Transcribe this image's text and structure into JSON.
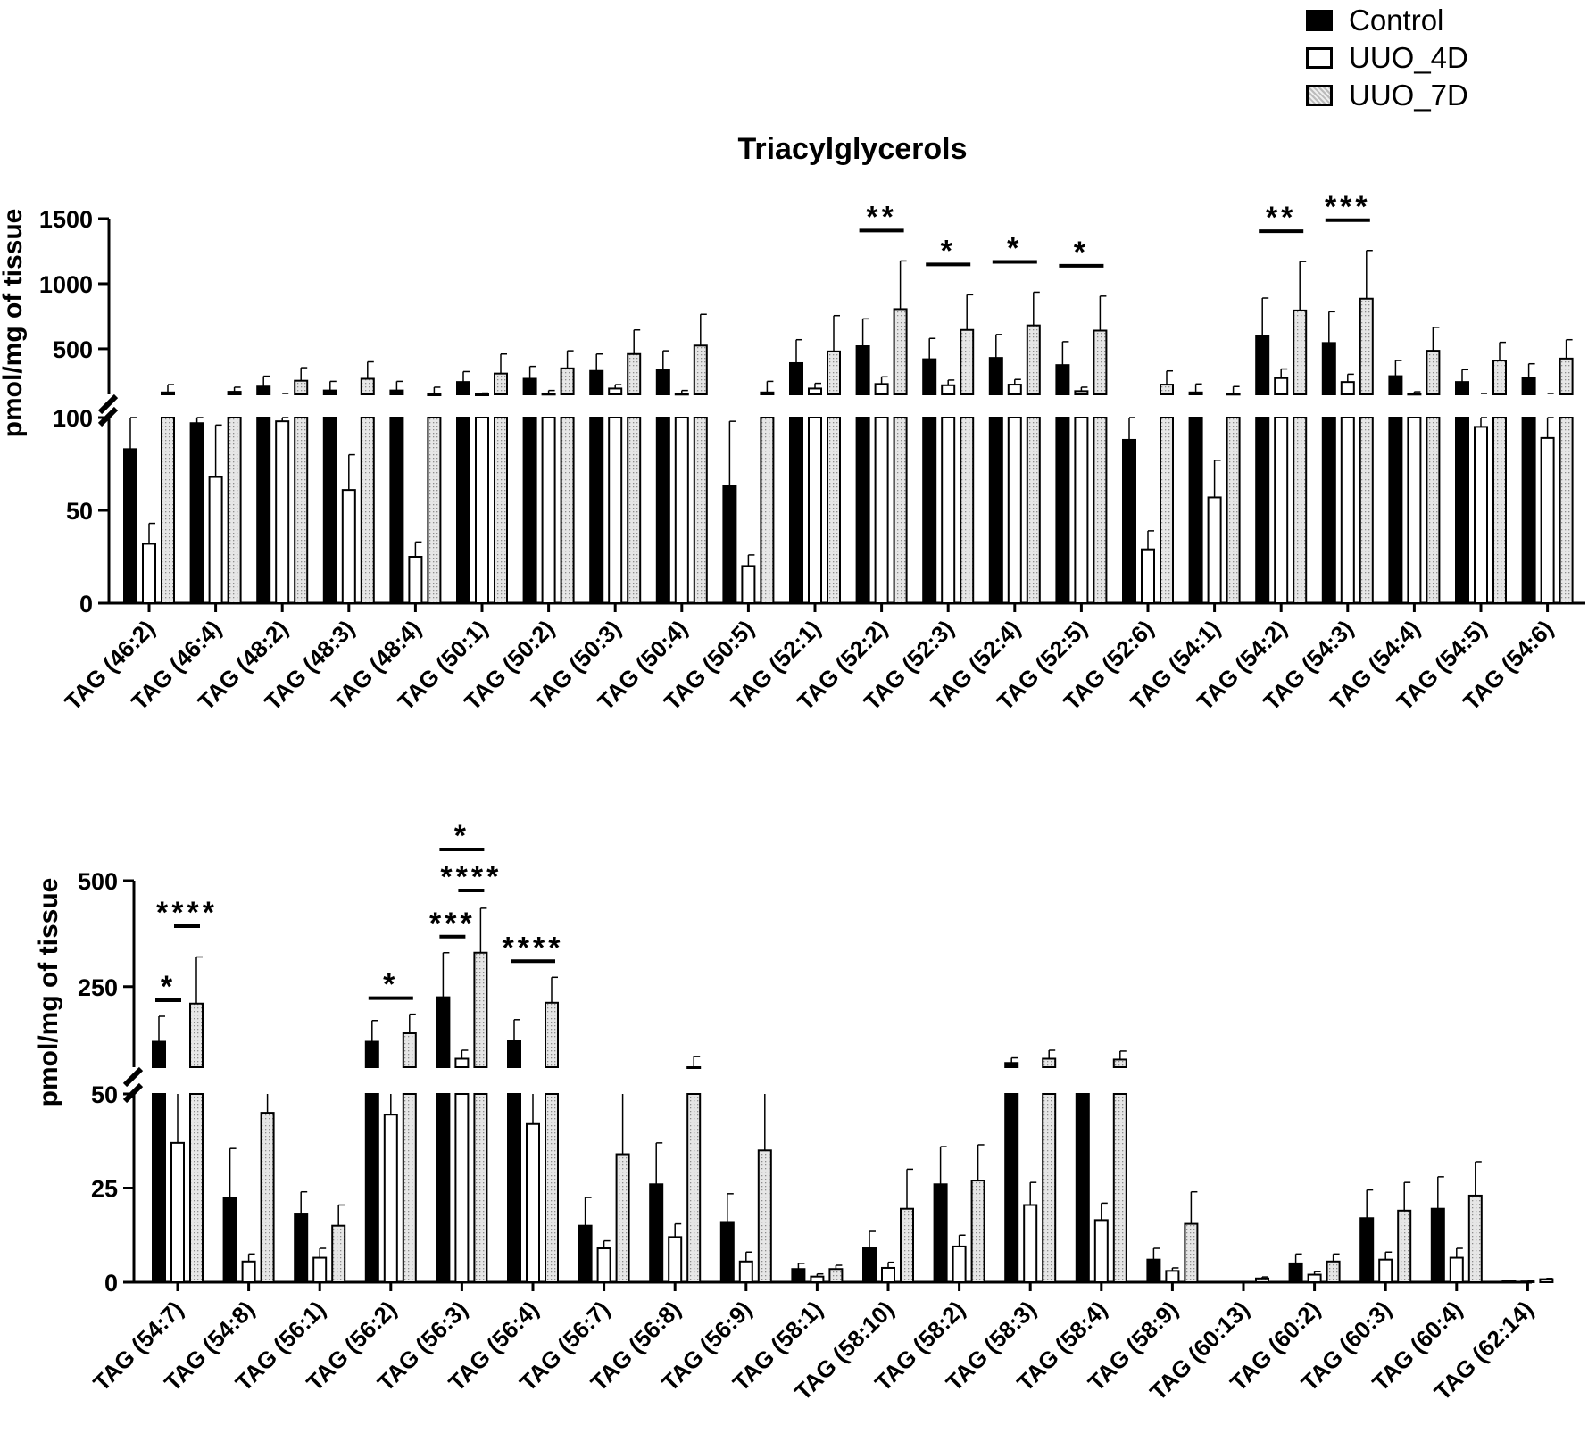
{
  "chart_data": [
    {
      "type": "bar",
      "title": "Triacylglycerols",
      "ylabel": "pmol/mg of tissue",
      "axis_break": {
        "lower_range": [
          0,
          100
        ],
        "upper_range": [
          150,
          1500
        ]
      },
      "lower_ticks": [
        "0",
        "50",
        "100"
      ],
      "upper_ticks": [
        "500",
        "1000",
        "1500"
      ],
      "categories": [
        "TAG (46:2)",
        "TAG (46:4)",
        "TAG (48:2)",
        "TAG (48:3)",
        "TAG (48:4)",
        "TAG (50:1)",
        "TAG (50:2)",
        "TAG (50:3)",
        "TAG (50:4)",
        "TAG (50:5)",
        "TAG (52:1)",
        "TAG (52:2)",
        "TAG (52:3)",
        "TAG (52:4)",
        "TAG (52:5)",
        "TAG (52:6)",
        "TAG (54:1)",
        "TAG (54:2)",
        "TAG (54:3)",
        "TAG (54:4)",
        "TAG (54:5)",
        "TAG (54:6)"
      ],
      "series": [
        {
          "name": "Control",
          "values": [
            83,
            97,
            210,
            180,
            180,
            245,
            270,
            330,
            335,
            63,
            390,
            520,
            420,
            430,
            375,
            88,
            165,
            600,
            545,
            290,
            245,
            275
          ],
          "errors": [
            17,
            3,
            80,
            70,
            70,
            80,
            95,
            130,
            150,
            35,
            180,
            210,
            160,
            180,
            180,
            12,
            65,
            290,
            240,
            120,
            95,
            110
          ]
        },
        {
          "name": "UUO_4D",
          "values": [
            32,
            68,
            98,
            61,
            25,
            145,
            155,
            195,
            155,
            20,
            195,
            230,
            220,
            225,
            175,
            29,
            57,
            275,
            245,
            155,
            95,
            89
          ],
          "errors": [
            11,
            28,
            2,
            19,
            8,
            15,
            25,
            30,
            25,
            6,
            40,
            55,
            40,
            40,
            30,
            10,
            20,
            70,
            60,
            15,
            5,
            11
          ],
          "show_break_cap": [
            false,
            false,
            true,
            false,
            false,
            true,
            true,
            true,
            true,
            false,
            true,
            true,
            true,
            true,
            true,
            false,
            false,
            true,
            true,
            true,
            true,
            true
          ]
        },
        {
          "name": "UUO_7D",
          "values": [
            165,
            170,
            255,
            270,
            150,
            310,
            350,
            460,
            525,
            165,
            480,
            805,
            645,
            680,
            640,
            225,
            155,
            795,
            885,
            485,
            410,
            425
          ],
          "errors": [
            60,
            35,
            100,
            130,
            55,
            150,
            135,
            185,
            240,
            85,
            275,
            370,
            270,
            255,
            265,
            105,
            55,
            375,
            370,
            180,
            140,
            145
          ]
        }
      ],
      "significance": [
        {
          "category_index": 11,
          "label": "**",
          "pair": "Control-UUO_7D"
        },
        {
          "category_index": 12,
          "label": "*",
          "pair": "Control-UUO_7D"
        },
        {
          "category_index": 13,
          "label": "*",
          "pair": "Control-UUO_7D"
        },
        {
          "category_index": 14,
          "label": "*",
          "pair": "Control-UUO_7D"
        },
        {
          "category_index": 17,
          "label": "**",
          "pair": "Control-UUO_7D"
        },
        {
          "category_index": 18,
          "label": "***",
          "pair": "Control-UUO_7D"
        }
      ]
    },
    {
      "type": "bar",
      "ylabel": "pmol/mg of tissue",
      "axis_break": {
        "lower_range": [
          0,
          50
        ],
        "upper_range": [
          60,
          500
        ]
      },
      "lower_ticks": [
        "0",
        "25",
        "50"
      ],
      "upper_ticks": [
        "250",
        "500"
      ],
      "categories": [
        "TAG (54:7)",
        "TAG (54:8)",
        "TAG (56:1)",
        "TAG (56:2)",
        "TAG (56:3)",
        "TAG (56:4)",
        "TAG (56:7)",
        "TAG (56:8)",
        "TAG (56:9)",
        "TAG (58:1)",
        "TAG (58:10)",
        "TAG (58:2)",
        "TAG (58:3)",
        "TAG (58:4)",
        "TAG (58:9)",
        "TAG (60:13)",
        "TAG (60:2)",
        "TAG (60:3)",
        "TAG (60:4)",
        "TAG (62:14)"
      ],
      "series": [
        {
          "name": "Control",
          "values": [
            120,
            22.5,
            18,
            120,
            225,
            122,
            15,
            26,
            16,
            3.5,
            9,
            26,
            70,
            50,
            6,
            0,
            5,
            17,
            19.5,
            0.3
          ],
          "errors": [
            60,
            13,
            6,
            50,
            105,
            50,
            7.5,
            11,
            7.5,
            1.5,
            4.5,
            10,
            12,
            15,
            3,
            0,
            2.5,
            7.5,
            8.5,
            0.2
          ]
        },
        {
          "name": "UUO_4D",
          "values": [
            37,
            5.5,
            6.5,
            44.5,
            80,
            42,
            9,
            12,
            5.5,
            1.5,
            3.8,
            9.5,
            20.5,
            16.5,
            3,
            0,
            2,
            6,
            6.5,
            0.2
          ],
          "errors": [
            20,
            2,
            2.5,
            16,
            20,
            15,
            2,
            3.5,
            2.5,
            0.7,
            1.5,
            3,
            6,
            4.5,
            0.8,
            0,
            0.8,
            2,
            2.5,
            0.1
          ]
        },
        {
          "name": "UUO_7D",
          "values": [
            210,
            45,
            15,
            140,
            330,
            212,
            34,
            57,
            35,
            3.5,
            19.5,
            27,
            80,
            78,
            15.5,
            1,
            5.5,
            19,
            23,
            0.8
          ],
          "errors": [
            110,
            15,
            5.5,
            45,
            105,
            60,
            25,
            28,
            26,
            1,
            10.5,
            9.5,
            20,
            20,
            8.5,
            0.4,
            2,
            7.5,
            9,
            0.2
          ]
        }
      ],
      "significance": [
        {
          "category_index": 0,
          "label": "*",
          "pair": "Control-UUO_4D",
          "level": 0
        },
        {
          "category_index": 0,
          "label": "****",
          "pair": "UUO_4D-UUO_7D",
          "level": 1
        },
        {
          "category_index": 3,
          "label": "*",
          "pair": "Control-UUO_7D",
          "level": 0
        },
        {
          "category_index": 4,
          "label": "***",
          "pair": "Control-UUO_4D",
          "level": 0
        },
        {
          "category_index": 4,
          "label": "****",
          "pair": "UUO_4D-UUO_7D",
          "level": 1
        },
        {
          "category_index": 4,
          "label": "*",
          "pair": "Control-UUO_7D",
          "level": 2
        },
        {
          "category_index": 5,
          "label": "****",
          "pair": "Control-UUO_7D",
          "level": 0
        }
      ]
    }
  ],
  "legend": [
    {
      "label": "Control",
      "fill": "#000000"
    },
    {
      "label": "UUO_4D",
      "fill": "#ffffff"
    },
    {
      "label": "UUO_7D",
      "fill": "#c8c8c8"
    }
  ],
  "colors": {
    "control": "#000000",
    "uuo_4d": "#ffffff",
    "uuo_7d": "#c8c8c8",
    "axis": "#000000"
  }
}
